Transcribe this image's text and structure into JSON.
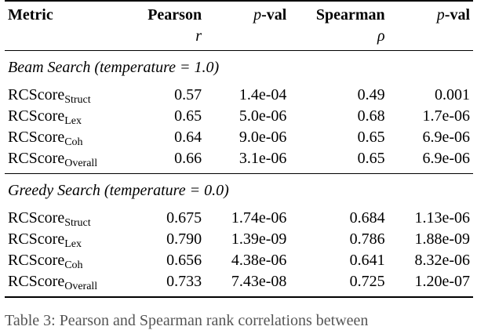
{
  "header": {
    "metric": "Metric",
    "pearson": "Pearson",
    "pearson_sub": "r",
    "pval_p": "p",
    "pval_rest": "-val",
    "spearman": "Spearman",
    "spearman_sub": "ρ"
  },
  "sections": [
    {
      "title": "Beam Search (temperature = 1.0)",
      "rows": [
        {
          "base": "RCScore",
          "sub": "Struct",
          "pearson": "0.57",
          "pearson_p": "1.4e-04",
          "spearman": "0.49",
          "spearman_p": "0.001"
        },
        {
          "base": "RCScore",
          "sub": "Lex",
          "pearson": "0.65",
          "pearson_p": "5.0e-06",
          "spearman": "0.68",
          "spearman_p": "1.7e-06"
        },
        {
          "base": "RCScore",
          "sub": "Coh",
          "pearson": "0.64",
          "pearson_p": "9.0e-06",
          "spearman": "0.65",
          "spearman_p": "6.9e-06"
        },
        {
          "base": "RCScore",
          "sub": "Overall",
          "pearson": "0.66",
          "pearson_p": "3.1e-06",
          "spearman": "0.65",
          "spearman_p": "6.9e-06"
        }
      ]
    },
    {
      "title": "Greedy Search (temperature = 0.0)",
      "rows": [
        {
          "base": "RCScore",
          "sub": "Struct",
          "pearson": "0.675",
          "pearson_p": "1.74e-06",
          "spearman": "0.684",
          "spearman_p": "1.13e-06"
        },
        {
          "base": "RCScore",
          "sub": "Lex",
          "pearson": "0.790",
          "pearson_p": "1.39e-09",
          "spearman": "0.786",
          "spearman_p": "1.88e-09"
        },
        {
          "base": "RCScore",
          "sub": "Coh",
          "pearson": "0.656",
          "pearson_p": "4.38e-06",
          "spearman": "0.641",
          "spearman_p": "8.32e-06"
        },
        {
          "base": "RCScore",
          "sub": "Overall",
          "pearson": "0.733",
          "pearson_p": "7.43e-08",
          "spearman": "0.725",
          "spearman_p": "1.20e-07"
        }
      ]
    }
  ],
  "caption": "Table 3: Pearson and Spearman rank correlations between"
}
